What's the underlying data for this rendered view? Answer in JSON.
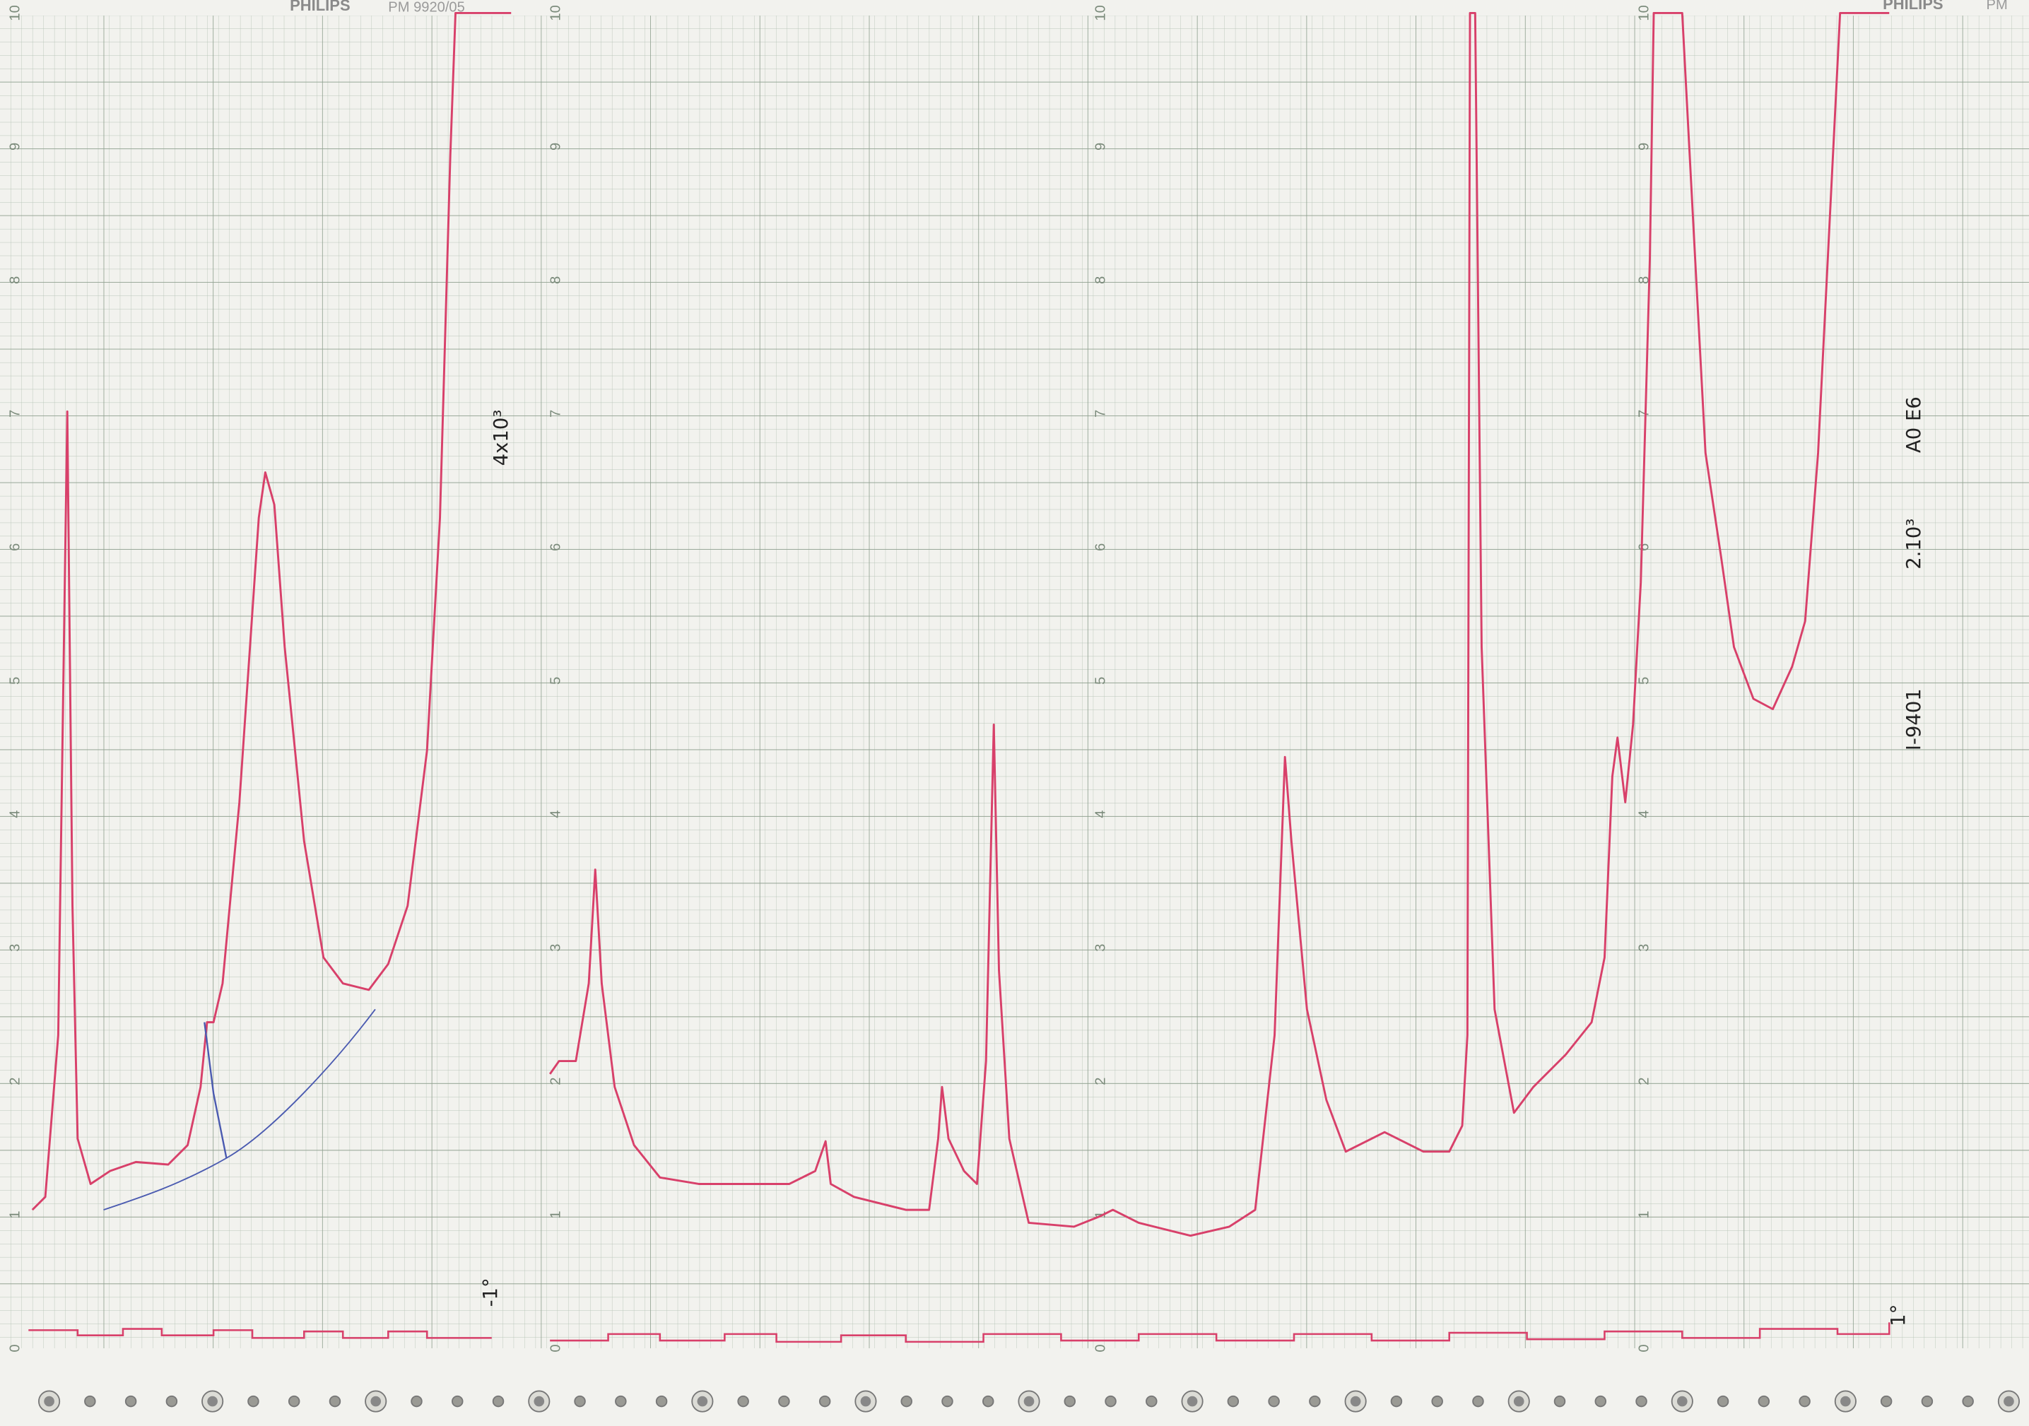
{
  "header": {
    "brand": "PHILIPS",
    "model": "PM 9920/05",
    "brand_right": "PHILIPS",
    "model_right": "PM"
  },
  "scale_labels": [
    "0",
    "1",
    "2",
    "3",
    "4",
    "5",
    "6",
    "7",
    "8",
    "9",
    "10"
  ],
  "annotations": {
    "range_left": "4x10³",
    "marker_left": "-1°",
    "sample": "A0 E6",
    "range_right": "2.10³",
    "id": "I-9401",
    "marker_right": "1°"
  }
}
